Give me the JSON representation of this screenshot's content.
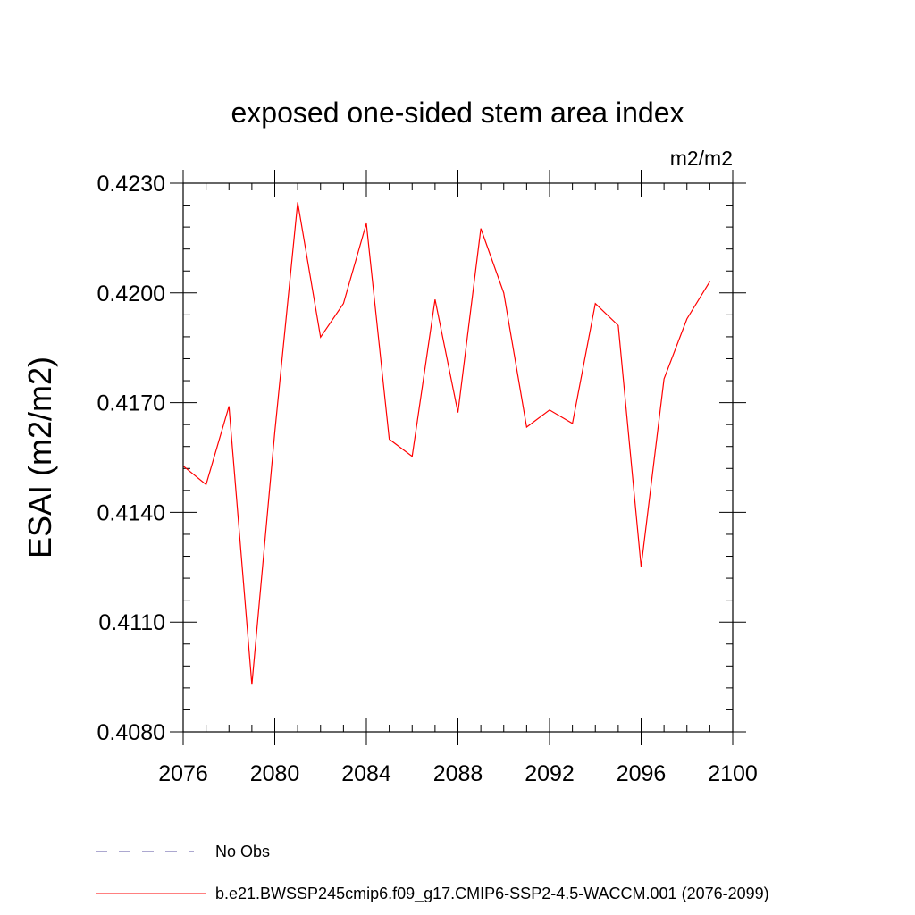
{
  "chart_data": {
    "type": "line",
    "title": "exposed one-sided stem area index",
    "units": "m2/m2",
    "xlabel": "",
    "ylabel": "ESAI  (m2/m2)",
    "xlim": [
      2076,
      2100
    ],
    "ylim": [
      0.408,
      0.423
    ],
    "x_ticks": [
      2076,
      2080,
      2084,
      2088,
      2092,
      2096,
      2100
    ],
    "x_tick_labels": [
      "2076",
      "2080",
      "2084",
      "2088",
      "2092",
      "2096",
      "2100"
    ],
    "x_minor_ticks": [
      2077,
      2078,
      2079,
      2081,
      2082,
      2083,
      2085,
      2086,
      2087,
      2089,
      2090,
      2091,
      2093,
      2094,
      2095,
      2097,
      2098,
      2099
    ],
    "y_ticks": [
      0.408,
      0.411,
      0.414,
      0.417,
      0.42,
      0.423
    ],
    "y_tick_labels": [
      "0.4080",
      "0.4110",
      "0.4140",
      "0.4170",
      "0.4200",
      "0.4230"
    ],
    "y_minor_ticks": [
      0.4086,
      0.4092,
      0.4098,
      0.4104,
      0.4116,
      0.4122,
      0.4128,
      0.4134,
      0.4146,
      0.4152,
      0.4158,
      0.4164,
      0.4176,
      0.4182,
      0.4188,
      0.4194,
      0.4206,
      0.4212,
      0.4218,
      0.4224
    ],
    "grid": false,
    "series": [
      {
        "name": "b.e21.BWSSP245cmip6.f09_g17.CMIP6-SSP2-4.5-WACCM.001 (2076-2099)",
        "color": "#ff0000",
        "x": [
          2076,
          2077,
          2078,
          2079,
          2080,
          2081,
          2082,
          2083,
          2084,
          2085,
          2086,
          2087,
          2088,
          2089,
          2090,
          2091,
          2092,
          2093,
          2094,
          2095,
          2096,
          2097,
          2098,
          2099
        ],
        "values": [
          0.41527,
          0.41476,
          0.4169,
          0.40929,
          0.41619,
          0.42248,
          0.41879,
          0.41971,
          0.4219,
          0.416,
          0.41553,
          0.41982,
          0.41673,
          0.42176,
          0.42,
          0.41633,
          0.4168,
          0.41643,
          0.41971,
          0.41911,
          0.41251,
          0.41765,
          0.41929,
          0.42031
        ]
      }
    ],
    "legend": {
      "placement": "bottom",
      "entries": [
        {
          "label": "No Obs",
          "color": "#5a50a0",
          "style": "dashed"
        },
        {
          "label": "b.e21.BWSSP245cmip6.f09_g17.CMIP6-SSP2-4.5-WACCM.001 (2076-2099)",
          "color": "#ff0000",
          "style": "solid"
        }
      ]
    }
  }
}
